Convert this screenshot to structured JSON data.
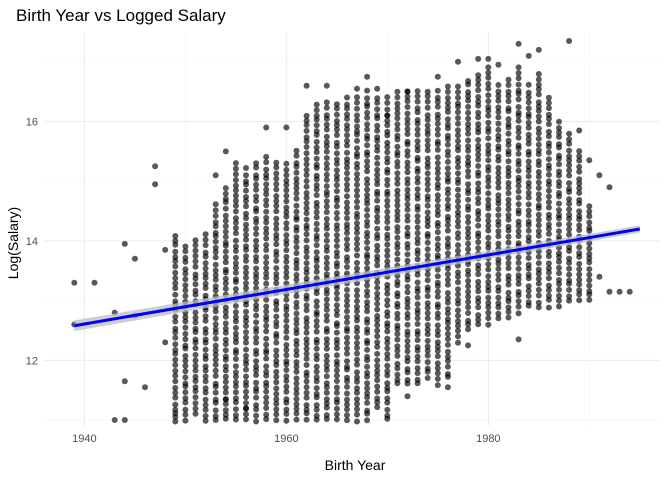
{
  "chart_data": {
    "type": "scatter",
    "title": "Birth Year vs Logged Salary",
    "xlabel": "Birth Year",
    "ylabel": "Log(Salary)",
    "xlim": [
      1936,
      1997
    ],
    "ylim": [
      10.9,
      17.5
    ],
    "x_ticks": [
      1940,
      1960,
      1980
    ],
    "y_ticks": [
      12,
      14,
      16
    ],
    "x_tick_labels": [
      "1940",
      "1960",
      "1980"
    ],
    "y_tick_labels": [
      "12",
      "14",
      "16"
    ],
    "grid": true,
    "legend": "none",
    "point_color": "#000000",
    "point_opacity": 0.65,
    "trend_color": "#0000ff",
    "band_color": "#bdbdbd",
    "trend_line": {
      "method": "linear",
      "x": [
        1939,
        1995
      ],
      "y": [
        12.58,
        14.2
      ],
      "se_halfwidth": [
        0.09,
        0.06
      ]
    },
    "outer_points": [
      {
        "x": 1939,
        "y": 13.3
      },
      {
        "x": 1939,
        "y": 12.6
      },
      {
        "x": 1941,
        "y": 13.3
      },
      {
        "x": 1943,
        "y": 11.0
      },
      {
        "x": 1943,
        "y": 12.8
      },
      {
        "x": 1944,
        "y": 11.65
      },
      {
        "x": 1944,
        "y": 13.95
      },
      {
        "x": 1944,
        "y": 11.0
      },
      {
        "x": 1945,
        "y": 13.7
      },
      {
        "x": 1945,
        "y": 12.75
      },
      {
        "x": 1946,
        "y": 11.55
      },
      {
        "x": 1947,
        "y": 15.25
      },
      {
        "x": 1947,
        "y": 14.95
      },
      {
        "x": 1948,
        "y": 13.85
      },
      {
        "x": 1948,
        "y": 12.3
      },
      {
        "x": 1949,
        "y": 11.05
      },
      {
        "x": 1953,
        "y": 15.1
      },
      {
        "x": 1954,
        "y": 15.5
      },
      {
        "x": 1958,
        "y": 15.9
      },
      {
        "x": 1960,
        "y": 15.9
      },
      {
        "x": 1962,
        "y": 16.6
      },
      {
        "x": 1964,
        "y": 16.6
      },
      {
        "x": 1967,
        "y": 16.55
      },
      {
        "x": 1968,
        "y": 16.75
      },
      {
        "x": 1969,
        "y": 16.55
      },
      {
        "x": 1970,
        "y": 16.1
      },
      {
        "x": 1972,
        "y": 16.5
      },
      {
        "x": 1974,
        "y": 16.5
      },
      {
        "x": 1975,
        "y": 16.75
      },
      {
        "x": 1977,
        "y": 17.0
      },
      {
        "x": 1979,
        "y": 17.05
      },
      {
        "x": 1980,
        "y": 17.05
      },
      {
        "x": 1981,
        "y": 16.95
      },
      {
        "x": 1983,
        "y": 17.3
      },
      {
        "x": 1984,
        "y": 17.1
      },
      {
        "x": 1985,
        "y": 17.2
      },
      {
        "x": 1986,
        "y": 16.4
      },
      {
        "x": 1988,
        "y": 17.35
      },
      {
        "x": 1989,
        "y": 15.85
      },
      {
        "x": 1990,
        "y": 15.35
      },
      {
        "x": 1991,
        "y": 15.1
      },
      {
        "x": 1992,
        "y": 14.9
      },
      {
        "x": 1991,
        "y": 13.4
      },
      {
        "x": 1992,
        "y": 13.15
      },
      {
        "x": 1993,
        "y": 13.15
      },
      {
        "x": 1994,
        "y": 13.15
      },
      {
        "x": 1978,
        "y": 12.25
      },
      {
        "x": 1983,
        "y": 12.35
      },
      {
        "x": 1972,
        "y": 11.4
      },
      {
        "x": 1976,
        "y": 11.55
      },
      {
        "x": 1954,
        "y": 11.35
      },
      {
        "x": 1956,
        "y": 11.2
      }
    ],
    "column_ranges": [
      {
        "x": 1949,
        "ymin": 11.0,
        "ymax": 14.1
      },
      {
        "x": 1950,
        "ymin": 11.0,
        "ymax": 13.9
      },
      {
        "x": 1951,
        "ymin": 11.1,
        "ymax": 14.0
      },
      {
        "x": 1952,
        "ymin": 11.0,
        "ymax": 14.1
      },
      {
        "x": 1953,
        "ymin": 11.0,
        "ymax": 14.6
      },
      {
        "x": 1954,
        "ymin": 11.0,
        "ymax": 14.9
      },
      {
        "x": 1955,
        "ymin": 11.0,
        "ymax": 15.3
      },
      {
        "x": 1956,
        "ymin": 11.0,
        "ymax": 15.2
      },
      {
        "x": 1957,
        "ymin": 11.0,
        "ymax": 15.3
      },
      {
        "x": 1958,
        "ymin": 11.0,
        "ymax": 15.4
      },
      {
        "x": 1959,
        "ymin": 11.0,
        "ymax": 15.3
      },
      {
        "x": 1960,
        "ymin": 11.0,
        "ymax": 15.3
      },
      {
        "x": 1961,
        "ymin": 11.0,
        "ymax": 15.5
      },
      {
        "x": 1962,
        "ymin": 11.0,
        "ymax": 16.1
      },
      {
        "x": 1963,
        "ymin": 11.0,
        "ymax": 16.3
      },
      {
        "x": 1964,
        "ymin": 11.0,
        "ymax": 16.3
      },
      {
        "x": 1965,
        "ymin": 11.0,
        "ymax": 16.3
      },
      {
        "x": 1966,
        "ymin": 11.0,
        "ymax": 16.4
      },
      {
        "x": 1967,
        "ymin": 11.0,
        "ymax": 16.4
      },
      {
        "x": 1968,
        "ymin": 11.0,
        "ymax": 16.5
      },
      {
        "x": 1969,
        "ymin": 11.2,
        "ymax": 16.4
      },
      {
        "x": 1970,
        "ymin": 11.0,
        "ymax": 16.4
      },
      {
        "x": 1971,
        "ymin": 11.6,
        "ymax": 16.5
      },
      {
        "x": 1972,
        "ymin": 11.6,
        "ymax": 16.5
      },
      {
        "x": 1973,
        "ymin": 11.6,
        "ymax": 16.5
      },
      {
        "x": 1974,
        "ymin": 11.7,
        "ymax": 16.4
      },
      {
        "x": 1975,
        "ymin": 11.6,
        "ymax": 16.5
      },
      {
        "x": 1976,
        "ymin": 11.7,
        "ymax": 16.6
      },
      {
        "x": 1977,
        "ymin": 12.3,
        "ymax": 16.6
      },
      {
        "x": 1978,
        "ymin": 12.5,
        "ymax": 16.7
      },
      {
        "x": 1979,
        "ymin": 12.6,
        "ymax": 16.8
      },
      {
        "x": 1980,
        "ymin": 12.6,
        "ymax": 16.9
      },
      {
        "x": 1981,
        "ymin": 12.7,
        "ymax": 16.6
      },
      {
        "x": 1982,
        "ymin": 12.7,
        "ymax": 16.7
      },
      {
        "x": 1983,
        "ymin": 12.8,
        "ymax": 16.9
      },
      {
        "x": 1984,
        "ymin": 12.9,
        "ymax": 16.6
      },
      {
        "x": 1985,
        "ymin": 12.9,
        "ymax": 16.8
      },
      {
        "x": 1986,
        "ymin": 12.9,
        "ymax": 16.3
      },
      {
        "x": 1987,
        "ymin": 12.9,
        "ymax": 16.0
      },
      {
        "x": 1988,
        "ymin": 13.0,
        "ymax": 15.8
      },
      {
        "x": 1989,
        "ymin": 13.0,
        "ymax": 15.5
      },
      {
        "x": 1990,
        "ymin": 13.0,
        "ymax": 14.6
      }
    ]
  }
}
